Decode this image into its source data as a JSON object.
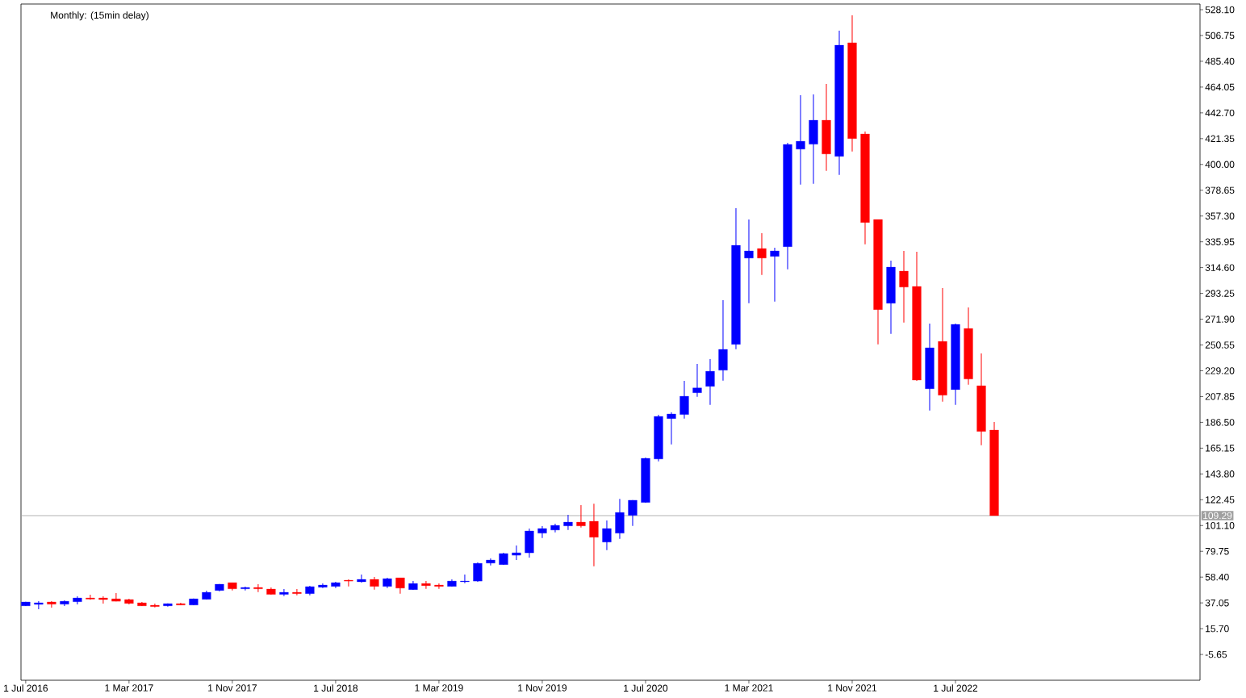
{
  "chart_data": {
    "type": "candlestick",
    "title": "Monthly: (15min delay)",
    "x": [
      "2016-07",
      "2016-08",
      "2016-09",
      "2016-10",
      "2016-11",
      "2016-12",
      "2017-01",
      "2017-02",
      "2017-03",
      "2017-04",
      "2017-05",
      "2017-06",
      "2017-07",
      "2017-08",
      "2017-09",
      "2017-10",
      "2017-11",
      "2017-12",
      "2018-01",
      "2018-02",
      "2018-03",
      "2018-04",
      "2018-05",
      "2018-06",
      "2018-07",
      "2018-08",
      "2018-09",
      "2018-10",
      "2018-11",
      "2018-12",
      "2019-01",
      "2019-02",
      "2019-03",
      "2019-04",
      "2019-05",
      "2019-06",
      "2019-07",
      "2019-08",
      "2019-09",
      "2019-10",
      "2019-11",
      "2019-12",
      "2020-01",
      "2020-02",
      "2020-03",
      "2020-04",
      "2020-05",
      "2020-06",
      "2020-07",
      "2020-08",
      "2020-09",
      "2020-10",
      "2020-11",
      "2020-12",
      "2021-01",
      "2021-02",
      "2021-03",
      "2021-04",
      "2021-05",
      "2021-06",
      "2021-07",
      "2021-08",
      "2021-09",
      "2021-10",
      "2021-11",
      "2021-12",
      "2022-01",
      "2022-02",
      "2022-03",
      "2022-04",
      "2022-05",
      "2022-06",
      "2022-07",
      "2022-08",
      "2022-09",
      "2022-10"
    ],
    "ohlc": [
      [
        34.6,
        38.0,
        34.5,
        37.8
      ],
      [
        35.8,
        38.4,
        31.8,
        37.1
      ],
      [
        37.8,
        38.4,
        33.1,
        36.0
      ],
      [
        36.0,
        39.1,
        34.4,
        38.4
      ],
      [
        38.0,
        42.4,
        35.8,
        41.1
      ],
      [
        41.1,
        43.8,
        39.6,
        40.2
      ],
      [
        41.1,
        42.4,
        36.4,
        39.8
      ],
      [
        40.4,
        45.1,
        38.3,
        38.4
      ],
      [
        39.8,
        40.4,
        35.8,
        36.6
      ],
      [
        37.1,
        37.8,
        34.5,
        34.6
      ],
      [
        35.1,
        36.4,
        33.3,
        34.0
      ],
      [
        34.6,
        36.6,
        34.0,
        36.4
      ],
      [
        36.4,
        37.1,
        35.2,
        35.3
      ],
      [
        35.3,
        40.6,
        35.1,
        40.4
      ],
      [
        40.0,
        47.1,
        39.9,
        45.8
      ],
      [
        47.3,
        52.6,
        46.6,
        52.5
      ],
      [
        53.8,
        53.9,
        47.3,
        48.7
      ],
      [
        48.7,
        50.5,
        47.3,
        49.8
      ],
      [
        49.8,
        52.5,
        46.0,
        48.7
      ],
      [
        48.5,
        49.8,
        44.0,
        44.1
      ],
      [
        44.1,
        48.5,
        42.6,
        45.8
      ],
      [
        45.8,
        48.5,
        43.3,
        44.7
      ],
      [
        44.7,
        51.1,
        43.3,
        50.5
      ],
      [
        50.0,
        53.1,
        49.3,
        51.8
      ],
      [
        50.7,
        54.5,
        49.3,
        53.8
      ],
      [
        55.8,
        56.5,
        50.7,
        55.1
      ],
      [
        54.5,
        60.5,
        53.8,
        56.5
      ],
      [
        56.5,
        58.5,
        48.0,
        50.7
      ],
      [
        50.7,
        57.8,
        49.3,
        57.1
      ],
      [
        57.8,
        57.9,
        44.7,
        49.3
      ],
      [
        48.0,
        55.1,
        47.9,
        53.1
      ],
      [
        53.1,
        55.1,
        48.7,
        51.3
      ],
      [
        51.8,
        53.1,
        48.7,
        50.7
      ],
      [
        50.7,
        56.5,
        50.6,
        55.1
      ],
      [
        54.5,
        60.5,
        53.3,
        55.1
      ],
      [
        55.1,
        70.5,
        54.5,
        69.8
      ],
      [
        70.0,
        73.8,
        68.0,
        72.5
      ],
      [
        68.7,
        78.5,
        68.6,
        77.9
      ],
      [
        76.5,
        84.5,
        72.5,
        78.5
      ],
      [
        78.5,
        98.6,
        74.5,
        96.6
      ],
      [
        94.8,
        100.6,
        90.8,
        98.6
      ],
      [
        97.4,
        102.6,
        95.4,
        101.2
      ],
      [
        100.8,
        109.9,
        97.4,
        103.9
      ],
      [
        103.9,
        117.9,
        99.4,
        100.8
      ],
      [
        104.6,
        119.2,
        67.4,
        91.4
      ],
      [
        87.4,
        105.3,
        80.7,
        98.6
      ],
      [
        94.8,
        123.2,
        90.1,
        111.9
      ],
      [
        109.5,
        122.1,
        100.8,
        122.0
      ],
      [
        120.2,
        157.4,
        119.9,
        156.7
      ],
      [
        156.2,
        192.8,
        154.2,
        191.4
      ],
      [
        189.6,
        194.8,
        168.2,
        193.4
      ],
      [
        193.0,
        220.8,
        189.6,
        208.1
      ],
      [
        211.0,
        234.8,
        207.7,
        215.0
      ],
      [
        216.3,
        238.9,
        201.0,
        228.8
      ],
      [
        229.7,
        287.6,
        221.0,
        246.9
      ],
      [
        251.1,
        363.8,
        247.1,
        333.0
      ],
      [
        322.5,
        354.4,
        285.1,
        328.4
      ],
      [
        330.4,
        343.1,
        308.5,
        322.5
      ],
      [
        323.9,
        331.0,
        286.5,
        328.4
      ],
      [
        331.9,
        417.9,
        313.2,
        416.5
      ],
      [
        412.7,
        457.3,
        383.3,
        419.2
      ],
      [
        416.8,
        458.0,
        384.0,
        436.6
      ],
      [
        436.6,
        466.6,
        394.7,
        408.7
      ],
      [
        406.7,
        510.7,
        391.4,
        498.7
      ],
      [
        500.7,
        523.4,
        410.7,
        421.4
      ],
      [
        425.2,
        427.2,
        333.9,
        352.0
      ],
      [
        354.4,
        354.5,
        251.1,
        279.8
      ],
      [
        285.1,
        320.4,
        259.8,
        315.0
      ],
      [
        311.7,
        328.4,
        269.1,
        298.5
      ],
      [
        299.0,
        327.7,
        220.8,
        221.5
      ],
      [
        214.3,
        268.2,
        196.3,
        248.2
      ],
      [
        253.5,
        297.6,
        203.6,
        209.0
      ],
      [
        213.6,
        268.2,
        201.0,
        267.6
      ],
      [
        264.2,
        281.6,
        217.7,
        222.4
      ],
      [
        216.8,
        243.5,
        167.6,
        179.0
      ],
      [
        180.1,
        186.8,
        109.2,
        109.29
      ]
    ],
    "colors": [
      "#0000ff",
      "#0000ff",
      "#ff0000",
      "#0000ff",
      "#0000ff",
      "#ff0000",
      "#ff0000",
      "#ff0000",
      "#ff0000",
      "#ff0000",
      "#ff0000",
      "#0000ff",
      "#ff0000",
      "#0000ff",
      "#0000ff",
      "#0000ff",
      "#ff0000",
      "#0000ff",
      "#ff0000",
      "#ff0000",
      "#0000ff",
      "#ff0000",
      "#0000ff",
      "#0000ff",
      "#0000ff",
      "#ff0000",
      "#0000ff",
      "#ff0000",
      "#0000ff",
      "#ff0000",
      "#0000ff",
      "#ff0000",
      "#ff0000",
      "#0000ff",
      "#0000ff",
      "#0000ff",
      "#0000ff",
      "#0000ff",
      "#0000ff",
      "#0000ff",
      "#0000ff",
      "#0000ff",
      "#0000ff",
      "#ff0000",
      "#ff0000",
      "#0000ff",
      "#0000ff",
      "#0000ff",
      "#0000ff",
      "#0000ff",
      "#0000ff",
      "#0000ff",
      "#0000ff",
      "#0000ff",
      "#0000ff",
      "#0000ff",
      "#0000ff",
      "#ff0000",
      "#0000ff",
      "#0000ff",
      "#0000ff",
      "#0000ff",
      "#ff0000",
      "#0000ff",
      "#ff0000",
      "#ff0000",
      "#ff0000",
      "#0000ff",
      "#ff0000",
      "#ff0000",
      "#0000ff",
      "#ff0000",
      "#0000ff",
      "#ff0000",
      "#ff0000",
      "#ff0000"
    ],
    "xlim": [
      "2016-06-20",
      "2024-01-30"
    ],
    "xticks": [
      {
        "value": "2016-07",
        "label": "1 Jul 2016"
      },
      {
        "value": "2017-03",
        "label": "1 Mar 2017"
      },
      {
        "value": "2017-11",
        "label": "1 Nov 2017"
      },
      {
        "value": "2018-07",
        "label": "1 Jul 2018"
      },
      {
        "value": "2019-03",
        "label": "1 Mar 2019"
      },
      {
        "value": "2019-11",
        "label": "1 Nov 2019"
      },
      {
        "value": "2020-07",
        "label": "1 Jul 2020"
      },
      {
        "value": "2021-03",
        "label": "1 Mar 2021"
      },
      {
        "value": "2021-11",
        "label": "1 Nov 2021"
      },
      {
        "value": "2022-07",
        "label": "1 Jul 2022"
      }
    ],
    "ylim": [
      -27.0,
      532.8
    ],
    "yticks": [
      {
        "value": 528.1,
        "label": "528.10"
      },
      {
        "value": 506.75,
        "label": "506.75"
      },
      {
        "value": 485.4,
        "label": "485.40"
      },
      {
        "value": 464.05,
        "label": "464.05"
      },
      {
        "value": 442.7,
        "label": "442.70"
      },
      {
        "value": 421.35,
        "label": "421.35"
      },
      {
        "value": 400.0,
        "label": "400.00"
      },
      {
        "value": 378.65,
        "label": "378.65"
      },
      {
        "value": 357.3,
        "label": "357.30"
      },
      {
        "value": 335.95,
        "label": "335.95"
      },
      {
        "value": 314.6,
        "label": "314.60"
      },
      {
        "value": 293.25,
        "label": "293.25"
      },
      {
        "value": 271.9,
        "label": "271.90"
      },
      {
        "value": 250.55,
        "label": "250.55"
      },
      {
        "value": 229.2,
        "label": "229.20"
      },
      {
        "value": 207.85,
        "label": "207.85"
      },
      {
        "value": 186.5,
        "label": "186.50"
      },
      {
        "value": 165.15,
        "label": "165.15"
      },
      {
        "value": 143.8,
        "label": "143.80"
      },
      {
        "value": 122.45,
        "label": "122.45"
      },
      {
        "value": 101.1,
        "label": "101.10"
      },
      {
        "value": 79.75,
        "label": "79.75"
      },
      {
        "value": 58.4,
        "label": "58.40"
      },
      {
        "value": 37.05,
        "label": "37.05"
      },
      {
        "value": 15.7,
        "label": "15.70"
      },
      {
        "value": -5.65,
        "label": "-5.65"
      }
    ],
    "ref_lines": [
      {
        "axis": "y",
        "value": 109.29,
        "label": "109.29",
        "color": "#a0a0a0"
      }
    ]
  }
}
